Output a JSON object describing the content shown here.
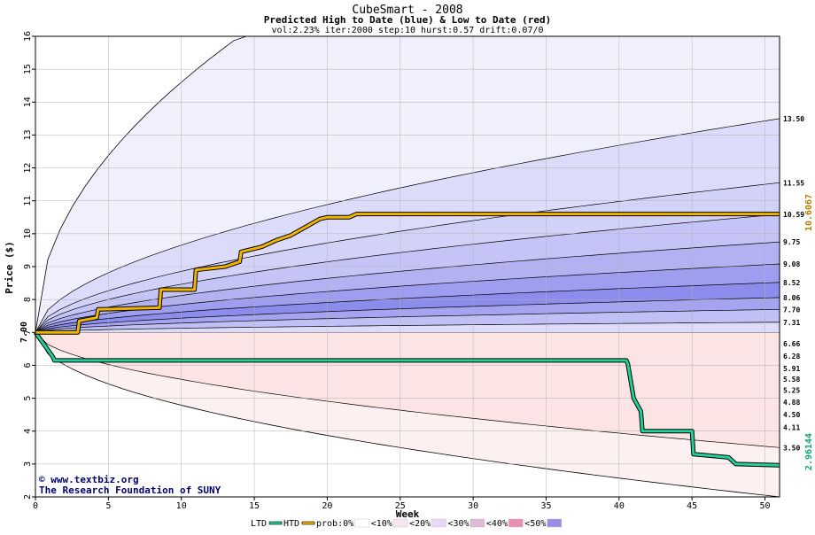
{
  "chart_data": {
    "type": "area",
    "title": "CubeSmart - 2008",
    "subtitle": "Predicted High to Date (blue) &  Low to Date (red)",
    "params": "vol:2.23% iter:2000 step:10 hurst:0.57 drift:0.07/0",
    "xlabel": "Week",
    "ylabel": "Price ($)",
    "xlim": [
      0,
      51
    ],
    "ylim": [
      2,
      16
    ],
    "xticks": [
      0,
      5,
      10,
      15,
      20,
      25,
      30,
      35,
      40,
      45,
      50
    ],
    "yticks": [
      2,
      3,
      4,
      5,
      6,
      7,
      8,
      9,
      10,
      11,
      12,
      13,
      14,
      15,
      16
    ],
    "grid": true,
    "start_price": 7.0,
    "start_label": "7.00",
    "high_bands": [
      {
        "end": 13.5,
        "label": "13.50",
        "fill": "#dcdcfa"
      },
      {
        "end": 11.55,
        "label": "11.55",
        "fill": "#d2d2f8"
      },
      {
        "end": 10.59,
        "label": "10.59",
        "fill": "#c4c4f6"
      },
      {
        "end": 9.75,
        "label": "9.75",
        "fill": "#b2b2f2"
      },
      {
        "end": 9.08,
        "label": "9.08",
        "fill": "#9e9ef0"
      },
      {
        "end": 8.52,
        "label": "8.52",
        "fill": "#8c8cec"
      },
      {
        "end": 8.06,
        "label": "8.06",
        "fill": "#a4a4f0"
      },
      {
        "end": 7.7,
        "label": "7.70",
        "fill": "#c0c0f4"
      },
      {
        "end": 7.31,
        "label": "7.31",
        "fill": "#dcdcfa"
      }
    ],
    "low_bands": [
      {
        "end": 6.66,
        "label": "6.66",
        "fill": "#fcdcdc"
      },
      {
        "end": 6.28,
        "label": "6.28",
        "fill": "#f8c4c4"
      },
      {
        "end": 5.91,
        "label": "5.91",
        "fill": "#f6aaaa"
      },
      {
        "end": 5.58,
        "label": "5.58",
        "fill": "#f49090"
      },
      {
        "end": 5.25,
        "label": "5.25",
        "fill": "#f08080"
      },
      {
        "end": 4.88,
        "label": "4.88",
        "fill": "#f4a0a0"
      },
      {
        "end": 4.5,
        "label": "4.50",
        "fill": "#f8bcbc"
      },
      {
        "end": 4.11,
        "label": "4.11",
        "fill": "#fcd2d2"
      },
      {
        "end": 3.5,
        "label": "3.50",
        "fill": "#fde4e4"
      }
    ],
    "outer_high": {
      "at_week_14": 16.0,
      "fill": "#f0f0fc"
    },
    "outer_low": {
      "end": 2.0,
      "fill": "#fdf0f0"
    },
    "htd_series": {
      "name": "HTD",
      "color": "#f0b400",
      "x": [
        0,
        2.9,
        3.0,
        4.2,
        4.3,
        8.5,
        8.6,
        10.9,
        11.0,
        13.0,
        14.0,
        14.1,
        15.5,
        16.5,
        17.5,
        18.5,
        19.5,
        20.0,
        21.5,
        22.0,
        51
      ],
      "y": [
        7.0,
        7.0,
        7.35,
        7.45,
        7.7,
        7.75,
        8.3,
        8.3,
        8.9,
        9.0,
        9.15,
        9.45,
        9.6,
        9.8,
        9.95,
        10.2,
        10.45,
        10.5,
        10.5,
        10.6,
        10.6
      ]
    },
    "ltd_series": {
      "name": "LTD",
      "color": "#20d098",
      "x": [
        0,
        1.2,
        1.3,
        40.5,
        40.6,
        41.0,
        41.5,
        41.6,
        45.0,
        45.1,
        47.5,
        48.0,
        51
      ],
      "y": [
        7.0,
        6.25,
        6.15,
        6.15,
        6.05,
        5.0,
        4.6,
        4.0,
        4.0,
        3.3,
        3.2,
        3.0,
        2.96
      ]
    },
    "final_high_label": "10.6067",
    "final_low_label": "2.96144",
    "watermark": [
      "© www.textbiz.org",
      "The Research Foundation of SUNY"
    ],
    "legend_placement": "bottom",
    "legend": [
      "LTD",
      "HTD",
      "prob:0%",
      "<10%",
      "<20%",
      "<30%",
      "<40%",
      "<50%"
    ],
    "legend_swatches": [
      "#ffffff",
      "#f6e4f0",
      "#e8d8f4",
      "#e0b8d8",
      "#e890b4",
      "#9c8ce8"
    ]
  }
}
